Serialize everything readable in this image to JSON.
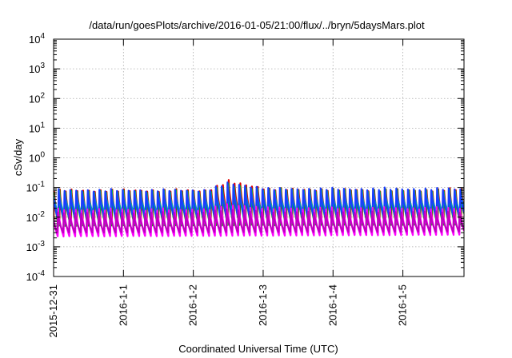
{
  "chart_data": {
    "type": "line",
    "title": "/data/run/goesPlots/archive/2016-01-05/21:00/flux/../bryn/5daysMars.plot",
    "xlabel": "Coordinated Universal Time (UTC)",
    "ylabel": "cSv/day",
    "yscale": "log",
    "ylim": [
      0.0001,
      10000
    ],
    "xlim": [
      "2015-12-31 00:00",
      "2016-01-05 21:00"
    ],
    "grid": true,
    "x_tick_labels": [
      "2015-12-31",
      "2016-1-1",
      "2016-1-2",
      "2016-1-3",
      "2016-1-4",
      "2016-1-5"
    ],
    "y_ticks": [
      {
        "value": 0.0001,
        "base": "10",
        "exp": "-4"
      },
      {
        "value": 0.001,
        "base": "10",
        "exp": "-3"
      },
      {
        "value": 0.01,
        "base": "10",
        "exp": "-2"
      },
      {
        "value": 0.1,
        "base": "10",
        "exp": "-1"
      },
      {
        "value": 1,
        "base": "10",
        "exp": "0"
      },
      {
        "value": 10,
        "base": "10",
        "exp": "1"
      },
      {
        "value": 100,
        "base": "10",
        "exp": "2"
      },
      {
        "value": 1000,
        "base": "10",
        "exp": "3"
      },
      {
        "value": 10000,
        "base": "10",
        "exp": "4"
      }
    ],
    "cycle_hours": 2.0,
    "series": [
      {
        "color": "#e00000",
        "peak": [
          [
            0,
            0.09
          ],
          [
            2.2,
            0.09
          ],
          [
            2.5,
            0.18
          ],
          [
            3.1,
            0.1
          ],
          [
            5.2,
            0.09
          ],
          [
            5.87,
            0.1
          ]
        ],
        "min": [
          [
            0,
            0.006
          ],
          [
            2.2,
            0.006
          ],
          [
            2.5,
            0.01
          ],
          [
            3.1,
            0.007
          ],
          [
            5.87,
            0.006
          ]
        ]
      },
      {
        "color": "#00b000",
        "peak": [
          [
            0,
            0.085
          ],
          [
            2.2,
            0.085
          ],
          [
            2.5,
            0.14
          ],
          [
            3.1,
            0.095
          ],
          [
            5.87,
            0.09
          ]
        ],
        "min": [
          [
            0,
            0.005
          ],
          [
            5.87,
            0.0055
          ]
        ]
      },
      {
        "color": "#00a8a8",
        "peak": [
          [
            0,
            0.08
          ],
          [
            2.2,
            0.08
          ],
          [
            2.5,
            0.12
          ],
          [
            3.1,
            0.09
          ],
          [
            5.87,
            0.085
          ]
        ],
        "min": [
          [
            0,
            0.012
          ],
          [
            5.87,
            0.013
          ]
        ]
      },
      {
        "color": "#1a3cff",
        "peak": [
          [
            0,
            0.09
          ],
          [
            2.2,
            0.09
          ],
          [
            2.5,
            0.16
          ],
          [
            3.1,
            0.1
          ],
          [
            5.87,
            0.1
          ]
        ],
        "min": [
          [
            0,
            0.008
          ],
          [
            5.87,
            0.009
          ]
        ]
      },
      {
        "color": "#ff00ff",
        "peak": [
          [
            0,
            0.02
          ],
          [
            2.2,
            0.02
          ],
          [
            2.5,
            0.03
          ],
          [
            3.1,
            0.022
          ],
          [
            5.87,
            0.022
          ]
        ],
        "min": [
          [
            0,
            0.0022
          ],
          [
            5.87,
            0.0025
          ]
        ]
      },
      {
        "color": "#c000c0",
        "peak": [
          [
            0,
            0.015
          ],
          [
            2.2,
            0.015
          ],
          [
            2.5,
            0.02
          ],
          [
            3.1,
            0.016
          ],
          [
            5.87,
            0.016
          ]
        ],
        "min": [
          [
            0,
            0.003
          ],
          [
            5.87,
            0.0032
          ]
        ]
      }
    ]
  }
}
